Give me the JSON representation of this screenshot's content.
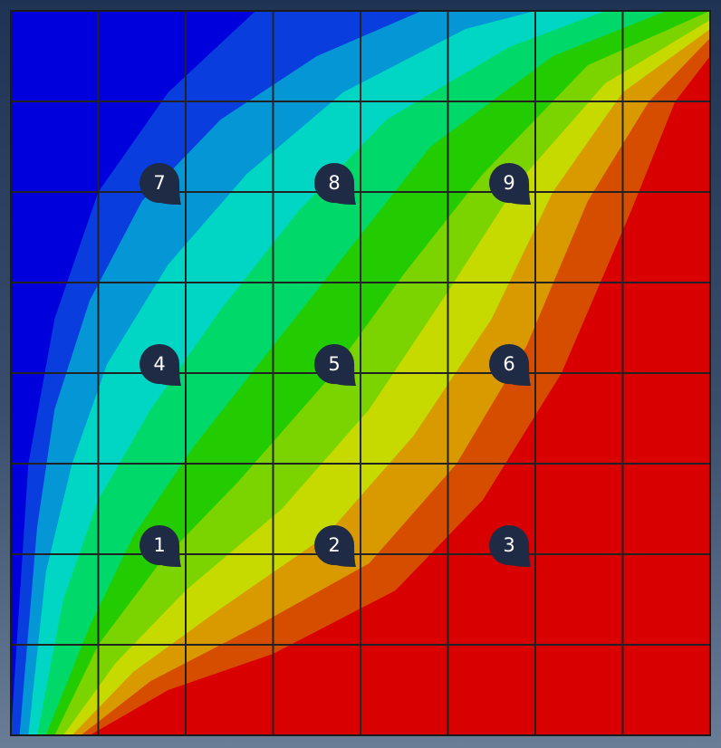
{
  "chart_data": {
    "type": "heatmap",
    "title": "",
    "xlabel": "",
    "ylabel": "",
    "grid_divisions": 8,
    "colormap": [
      "#0000dd",
      "#0a3ddd",
      "#0596d6",
      "#00d6c3",
      "#00d96a",
      "#22cc00",
      "#7bd300",
      "#c6da00",
      "#d99a00",
      "#d74d00",
      "#d80000"
    ],
    "gridline_color": "#222222",
    "frame_color": "#1a1a1a",
    "markers": [
      {
        "label": "1",
        "x": 0.5,
        "y": 0.5
      },
      {
        "label": "2",
        "x": 2.5,
        "y": 0.5
      },
      {
        "label": "3",
        "x": 4.5,
        "y": 0.5
      },
      {
        "label": "4",
        "x": 0.5,
        "y": 2.5
      },
      {
        "label": "5",
        "x": 2.5,
        "y": 2.5
      },
      {
        "label": "6",
        "x": 4.5,
        "y": 2.5
      },
      {
        "label": "7",
        "x": 0.5,
        "y": 4.5
      },
      {
        "label": "8",
        "x": 2.5,
        "y": 4.5
      },
      {
        "label": "9",
        "x": 4.5,
        "y": 4.5
      }
    ],
    "marker_color": "#1f2a44"
  }
}
